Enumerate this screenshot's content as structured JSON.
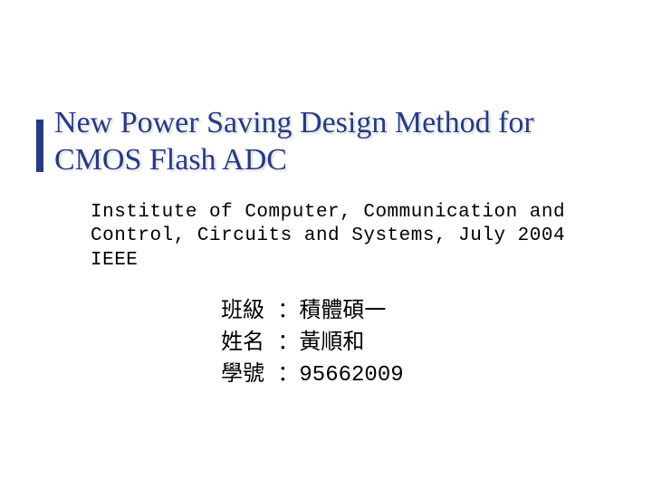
{
  "colors": {
    "title_color": "#253b84",
    "accent_bar": "#253b84",
    "body_text": "#000000",
    "background": "#ffffff"
  },
  "typography": {
    "title_font": "Times New Roman",
    "title_size_pt": 34,
    "body_font": "Courier New",
    "subtitle_size_pt": 21,
    "info_size_pt": 24
  },
  "title": "New Power Saving Design Method for CMOS Flash ADC",
  "subtitle": "Institute of Computer, Communication and Control, Circuits and Systems, July 2004 IEEE",
  "info": {
    "row1": "班級 ：積體碩一",
    "row2": "姓名 ：黃順和",
    "row3": "學號 ：95662009"
  }
}
